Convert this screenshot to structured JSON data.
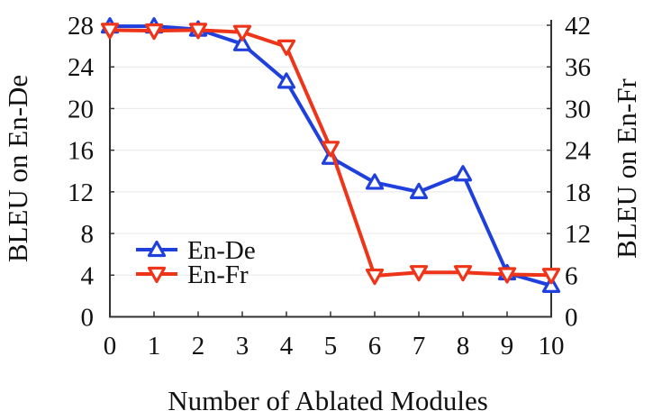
{
  "figure": {
    "background": "#ffffff",
    "text_color": "#111111",
    "axis_color": "#333333",
    "grid_color": "#ebebeb"
  },
  "chart_data": {
    "type": "line",
    "x": [
      0,
      1,
      2,
      3,
      4,
      5,
      6,
      7,
      8,
      9,
      10
    ],
    "xticks": [
      "0",
      "1",
      "2",
      "3",
      "4",
      "5",
      "6",
      "7",
      "8",
      "9",
      "10"
    ],
    "xlabel": "Number of Ablated Modules",
    "ylabel_left": "BLEU on En-De",
    "ylabel_right": "BLEU on En-Fr",
    "yticks_left": [
      "0",
      "4",
      "8",
      "12",
      "16",
      "20",
      "24",
      "28"
    ],
    "yticks_right": [
      "0",
      "6",
      "12",
      "18",
      "24",
      "30",
      "36",
      "42"
    ],
    "ylim_left": [
      0,
      28
    ],
    "ylim_right": [
      0,
      42
    ],
    "grid": "horizontal-light",
    "legend_position": "inside-lower-left",
    "series": [
      {
        "name": "En-De",
        "axis": "left",
        "color": "#2040dd",
        "marker": "triangle-up",
        "values": [
          27.9,
          27.9,
          27.6,
          26.2,
          22.6,
          15.3,
          12.9,
          12.0,
          13.7,
          4.2,
          3.0
        ]
      },
      {
        "name": "En-Fr",
        "axis": "right",
        "color": "#ee3419",
        "marker": "triangle-down",
        "values": [
          41.3,
          41.2,
          41.3,
          41.0,
          38.9,
          24.3,
          5.9,
          6.4,
          6.4,
          6.1,
          6.0
        ]
      }
    ]
  }
}
